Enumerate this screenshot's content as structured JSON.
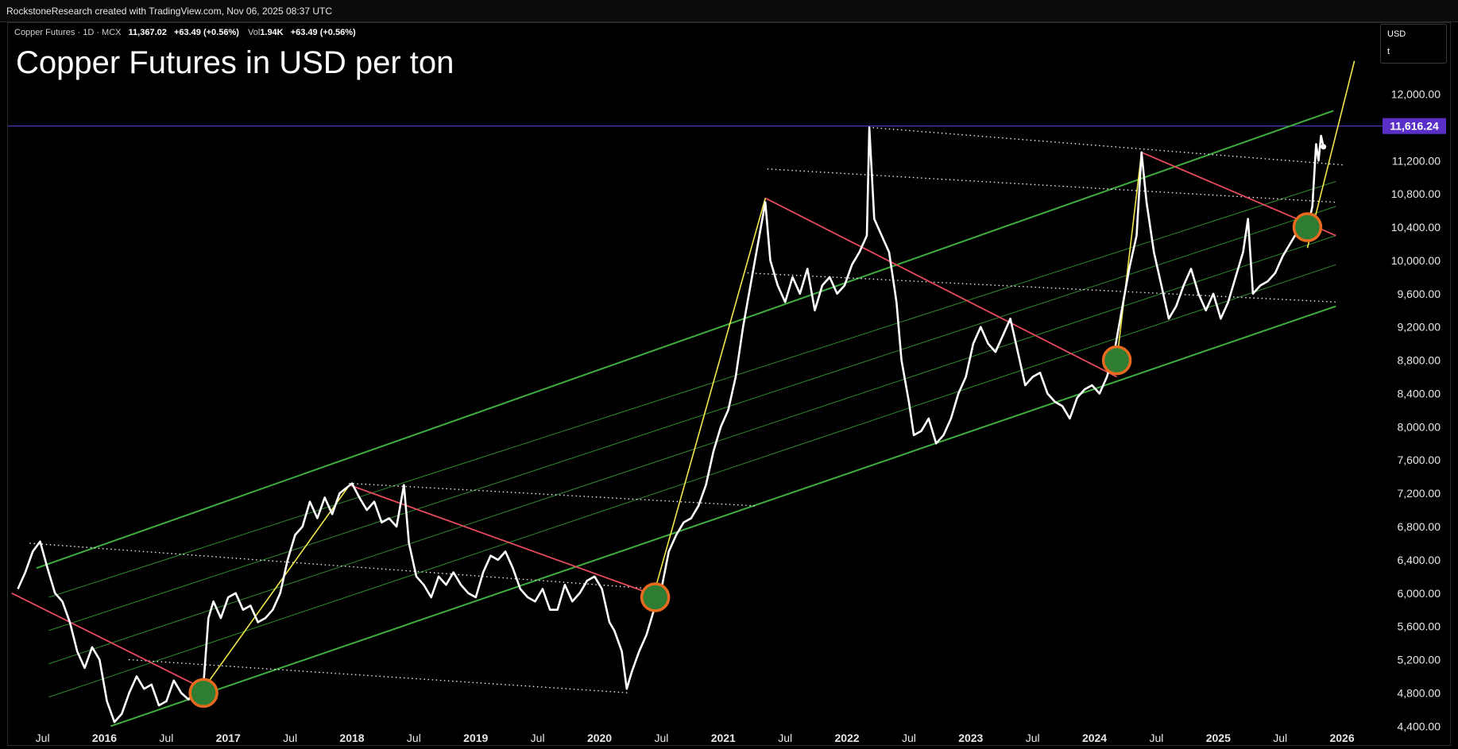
{
  "header": {
    "attribution": "RockstoneResearch created with TradingView.com, Nov 06, 2025 08:37 UTC"
  },
  "legend": {
    "symbol": "Copper Futures · 1D · MCX",
    "price": "11,367.02",
    "change": "+63.49 (+0.56%)",
    "volume_label": "Vol",
    "volume": "1.94K",
    "volume_change": "+63.49 (+0.56%)"
  },
  "title": "Copper Futures in USD per ton",
  "currency_selector": {
    "currency": "USD",
    "unit": "t"
  },
  "colors": {
    "background": "#000000",
    "price_line": "#ffffff",
    "channel": "#3fae3f",
    "channel_inner": "#2f8a2f",
    "downtrend": "#e84a5f",
    "impulse": "#f2e84b",
    "level_line": "#5a3cc8",
    "price_tag": "#5a2fc8",
    "marker_fill": "#2e7d32",
    "marker_ring": "#e86a1e"
  },
  "chart_data": {
    "type": "line",
    "title": "Copper Futures in USD per ton",
    "x_ticks": [
      "Jul",
      "2016",
      "Jul",
      "2017",
      "Jul",
      "2018",
      "Jul",
      "2019",
      "Jul",
      "2020",
      "Jul",
      "2021",
      "Jul",
      "2022",
      "Jul",
      "2023",
      "Jul",
      "2024",
      "Jul",
      "2025",
      "Jul",
      "2026"
    ],
    "x_tick_years": [
      2015.5,
      2016,
      2016.5,
      2017,
      2017.5,
      2018,
      2018.5,
      2019,
      2019.5,
      2020,
      2020.5,
      2021,
      2021.5,
      2022,
      2022.5,
      2023,
      2023.5,
      2024,
      2024.5,
      2025,
      2025.5,
      2026
    ],
    "x_range": [
      2015.22,
      2026.25
    ],
    "y_ticks": [
      "12,000.00",
      "11,200.00",
      "10,800.00",
      "10,400.00",
      "10,000.00",
      "9,600.00",
      "9,200.00",
      "8,800.00",
      "8,400.00",
      "8,000.00",
      "7,600.00",
      "7,200.00",
      "6,800.00",
      "6,400.00",
      "6,000.00",
      "5,600.00",
      "5,200.00",
      "4,800.00",
      "4,400.00"
    ],
    "y_tick_values": [
      12000,
      11200,
      10800,
      10400,
      10000,
      9600,
      9200,
      8800,
      8400,
      8000,
      7600,
      7200,
      6800,
      6400,
      6000,
      5600,
      5200,
      4800,
      4400
    ],
    "y_range": [
      4250,
      12750
    ],
    "current_level": {
      "label": "11,616.24",
      "value": 11616.24
    },
    "series": [
      {
        "values": [
          [
            2015.3,
            6050
          ],
          [
            2015.36,
            6250
          ],
          [
            2015.42,
            6500
          ],
          [
            2015.48,
            6620
          ],
          [
            2015.54,
            6300
          ],
          [
            2015.6,
            6000
          ],
          [
            2015.66,
            5900
          ],
          [
            2015.72,
            5650
          ],
          [
            2015.78,
            5300
          ],
          [
            2015.84,
            5100
          ],
          [
            2015.9,
            5350
          ],
          [
            2015.96,
            5200
          ],
          [
            2016.02,
            4700
          ],
          [
            2016.08,
            4450
          ],
          [
            2016.14,
            4550
          ],
          [
            2016.2,
            4800
          ],
          [
            2016.26,
            5000
          ],
          [
            2016.32,
            4850
          ],
          [
            2016.38,
            4900
          ],
          [
            2016.44,
            4650
          ],
          [
            2016.5,
            4700
          ],
          [
            2016.56,
            4950
          ],
          [
            2016.62,
            4800
          ],
          [
            2016.68,
            4720
          ],
          [
            2016.74,
            4850
          ],
          [
            2016.8,
            4900
          ],
          [
            2016.84,
            5700
          ],
          [
            2016.88,
            5900
          ],
          [
            2016.94,
            5700
          ],
          [
            2017.0,
            5950
          ],
          [
            2017.06,
            6000
          ],
          [
            2017.12,
            5800
          ],
          [
            2017.18,
            5850
          ],
          [
            2017.24,
            5650
          ],
          [
            2017.3,
            5700
          ],
          [
            2017.36,
            5800
          ],
          [
            2017.42,
            6000
          ],
          [
            2017.48,
            6400
          ],
          [
            2017.54,
            6700
          ],
          [
            2017.6,
            6800
          ],
          [
            2017.66,
            7100
          ],
          [
            2017.72,
            6900
          ],
          [
            2017.78,
            7150
          ],
          [
            2017.84,
            6950
          ],
          [
            2017.9,
            7200
          ],
          [
            2018.0,
            7320
          ],
          [
            2018.06,
            7150
          ],
          [
            2018.12,
            7000
          ],
          [
            2018.18,
            7100
          ],
          [
            2018.24,
            6850
          ],
          [
            2018.3,
            6900
          ],
          [
            2018.36,
            6800
          ],
          [
            2018.42,
            7300
          ],
          [
            2018.46,
            6600
          ],
          [
            2018.52,
            6200
          ],
          [
            2018.58,
            6100
          ],
          [
            2018.64,
            5950
          ],
          [
            2018.7,
            6200
          ],
          [
            2018.76,
            6100
          ],
          [
            2018.82,
            6250
          ],
          [
            2018.88,
            6100
          ],
          [
            2018.94,
            6000
          ],
          [
            2019.0,
            5950
          ],
          [
            2019.06,
            6250
          ],
          [
            2019.12,
            6450
          ],
          [
            2019.18,
            6400
          ],
          [
            2019.24,
            6500
          ],
          [
            2019.3,
            6300
          ],
          [
            2019.36,
            6050
          ],
          [
            2019.42,
            5950
          ],
          [
            2019.48,
            5900
          ],
          [
            2019.54,
            6050
          ],
          [
            2019.6,
            5800
          ],
          [
            2019.66,
            5800
          ],
          [
            2019.72,
            6100
          ],
          [
            2019.78,
            5900
          ],
          [
            2019.84,
            6000
          ],
          [
            2019.9,
            6150
          ],
          [
            2019.96,
            6200
          ],
          [
            2020.02,
            6050
          ],
          [
            2020.08,
            5650
          ],
          [
            2020.12,
            5550
          ],
          [
            2020.18,
            5300
          ],
          [
            2020.22,
            4850
          ],
          [
            2020.26,
            5050
          ],
          [
            2020.32,
            5300
          ],
          [
            2020.38,
            5500
          ],
          [
            2020.44,
            5800
          ],
          [
            2020.5,
            6050
          ],
          [
            2020.56,
            6500
          ],
          [
            2020.62,
            6700
          ],
          [
            2020.68,
            6850
          ],
          [
            2020.74,
            6900
          ],
          [
            2020.8,
            7050
          ],
          [
            2020.86,
            7300
          ],
          [
            2020.92,
            7700
          ],
          [
            2020.98,
            8000
          ],
          [
            2021.04,
            8200
          ],
          [
            2021.1,
            8600
          ],
          [
            2021.16,
            9200
          ],
          [
            2021.22,
            9700
          ],
          [
            2021.28,
            10200
          ],
          [
            2021.34,
            10700
          ],
          [
            2021.38,
            10000
          ],
          [
            2021.44,
            9700
          ],
          [
            2021.5,
            9500
          ],
          [
            2021.56,
            9800
          ],
          [
            2021.62,
            9600
          ],
          [
            2021.68,
            9900
          ],
          [
            2021.74,
            9400
          ],
          [
            2021.8,
            9700
          ],
          [
            2021.86,
            9800
          ],
          [
            2021.92,
            9600
          ],
          [
            2021.98,
            9700
          ],
          [
            2022.04,
            9950
          ],
          [
            2022.1,
            10100
          ],
          [
            2022.16,
            10300
          ],
          [
            2022.18,
            11600
          ],
          [
            2022.22,
            10500
          ],
          [
            2022.28,
            10300
          ],
          [
            2022.34,
            10100
          ],
          [
            2022.4,
            9500
          ],
          [
            2022.44,
            8800
          ],
          [
            2022.5,
            8300
          ],
          [
            2022.54,
            7900
          ],
          [
            2022.6,
            7950
          ],
          [
            2022.66,
            8100
          ],
          [
            2022.72,
            7800
          ],
          [
            2022.78,
            7900
          ],
          [
            2022.84,
            8100
          ],
          [
            2022.9,
            8400
          ],
          [
            2022.96,
            8600
          ],
          [
            2023.02,
            9000
          ],
          [
            2023.08,
            9200
          ],
          [
            2023.14,
            9000
          ],
          [
            2023.2,
            8900
          ],
          [
            2023.26,
            9100
          ],
          [
            2023.32,
            9300
          ],
          [
            2023.38,
            8900
          ],
          [
            2023.44,
            8500
          ],
          [
            2023.5,
            8600
          ],
          [
            2023.56,
            8650
          ],
          [
            2023.62,
            8400
          ],
          [
            2023.68,
            8300
          ],
          [
            2023.74,
            8250
          ],
          [
            2023.8,
            8100
          ],
          [
            2023.86,
            8350
          ],
          [
            2023.92,
            8450
          ],
          [
            2023.98,
            8500
          ],
          [
            2024.04,
            8400
          ],
          [
            2024.1,
            8600
          ],
          [
            2024.16,
            8900
          ],
          [
            2024.22,
            9400
          ],
          [
            2024.28,
            9900
          ],
          [
            2024.34,
            10300
          ],
          [
            2024.38,
            11300
          ],
          [
            2024.42,
            10700
          ],
          [
            2024.48,
            10100
          ],
          [
            2024.54,
            9700
          ],
          [
            2024.6,
            9300
          ],
          [
            2024.66,
            9450
          ],
          [
            2024.72,
            9700
          ],
          [
            2024.78,
            9900
          ],
          [
            2024.84,
            9600
          ],
          [
            2024.9,
            9400
          ],
          [
            2024.96,
            9600
          ],
          [
            2025.02,
            9300
          ],
          [
            2025.08,
            9500
          ],
          [
            2025.14,
            9800
          ],
          [
            2025.2,
            10100
          ],
          [
            2025.24,
            10500
          ],
          [
            2025.28,
            9600
          ],
          [
            2025.34,
            9700
          ],
          [
            2025.4,
            9750
          ],
          [
            2025.46,
            9850
          ],
          [
            2025.52,
            10050
          ],
          [
            2025.58,
            10200
          ],
          [
            2025.64,
            10350
          ],
          [
            2025.7,
            10250
          ],
          [
            2025.76,
            10650
          ],
          [
            2025.79,
            11400
          ],
          [
            2025.81,
            11200
          ],
          [
            2025.83,
            11500
          ],
          [
            2025.85,
            11367
          ]
        ]
      }
    ],
    "green_channel": {
      "lower": [
        [
          2016.05,
          4400
        ],
        [
          2025.95,
          9450
        ]
      ],
      "upper": [
        [
          2015.45,
          6300
        ],
        [
          2025.93,
          11800
        ]
      ],
      "inner": [
        [
          [
            2015.55,
            4750
          ],
          [
            2025.95,
            9950
          ]
        ],
        [
          [
            2015.55,
            5150
          ],
          [
            2025.95,
            10300
          ]
        ],
        [
          [
            2015.55,
            5550
          ],
          [
            2025.95,
            10650
          ]
        ],
        [
          [
            2015.55,
            5950
          ],
          [
            2025.95,
            10950
          ]
        ]
      ]
    },
    "downtrend_lines": [
      [
        [
          2015.25,
          6000
        ],
        [
          2016.8,
          4850
        ]
      ],
      [
        [
          2017.98,
          7300
        ],
        [
          2020.4,
          6000
        ]
      ],
      [
        [
          2021.34,
          10750
        ],
        [
          2024.18,
          8600
        ]
      ],
      [
        [
          2024.38,
          11300
        ],
        [
          2025.95,
          10300
        ]
      ]
    ],
    "impulse_lines": [
      [
        [
          2016.8,
          4850
        ],
        [
          2017.98,
          7300
        ]
      ],
      [
        [
          2020.45,
          6050
        ],
        [
          2021.34,
          10750
        ]
      ],
      [
        [
          2024.18,
          8800
        ],
        [
          2024.38,
          11300
        ]
      ],
      [
        [
          2025.72,
          10150
        ],
        [
          2026.1,
          12400
        ]
      ]
    ],
    "dotted_levels": [
      [
        [
          2015.4,
          6600
        ],
        [
          2020.45,
          6050
        ]
      ],
      [
        [
          2016.2,
          5200
        ],
        [
          2020.25,
          4800
        ]
      ],
      [
        [
          2017.98,
          7320
        ],
        [
          2021.25,
          7050
        ]
      ],
      [
        [
          2021.36,
          11100
        ],
        [
          2025.95,
          10700
        ]
      ],
      [
        [
          2022.18,
          11600
        ],
        [
          2026.0,
          11150
        ]
      ],
      [
        [
          2021.2,
          9850
        ],
        [
          2025.95,
          9500
        ]
      ]
    ],
    "markers": [
      [
        2016.8,
        4800
      ],
      [
        2020.45,
        5950
      ],
      [
        2024.18,
        8800
      ],
      [
        2025.72,
        10400
      ]
    ]
  }
}
